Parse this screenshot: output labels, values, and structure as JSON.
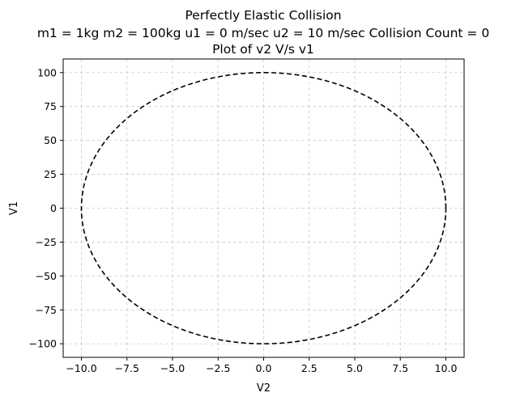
{
  "chart_data": {
    "type": "line",
    "title_lines": [
      "Perfectly Elastic Collision",
      "m1 = 1kg  m2 = 100kg  u1 = 0 m/sec  u2 = 10 m/sec Collision Count = 0",
      "Plot of v2 V/s v1"
    ],
    "xlabel": "V2",
    "ylabel": "V1",
    "xlim": [
      -11,
      11
    ],
    "ylim": [
      -110,
      110
    ],
    "xticks": [
      -10.0,
      -7.5,
      -5.0,
      -2.5,
      0.0,
      2.5,
      5.0,
      7.5,
      10.0
    ],
    "xtick_labels": [
      "−10.0",
      "−7.5",
      "−5.0",
      "−2.5",
      "0.0",
      "2.5",
      "5.0",
      "7.5",
      "10.0"
    ],
    "yticks": [
      -100,
      -75,
      -50,
      -25,
      0,
      25,
      50,
      75,
      100
    ],
    "ytick_labels": [
      "−100",
      "−75",
      "−50",
      "−25",
      "0",
      "25",
      "50",
      "75",
      "100"
    ],
    "grid": true,
    "series": [
      {
        "shape": "ellipse",
        "center": [
          0,
          0
        ],
        "x_radius": 10,
        "y_radius": 100,
        "color": "#000000",
        "linestyle": "dashed"
      }
    ]
  },
  "colors": {
    "background": "#ffffff",
    "grid": "#b0b0b0",
    "axes": "#000000",
    "series": "#000000"
  }
}
